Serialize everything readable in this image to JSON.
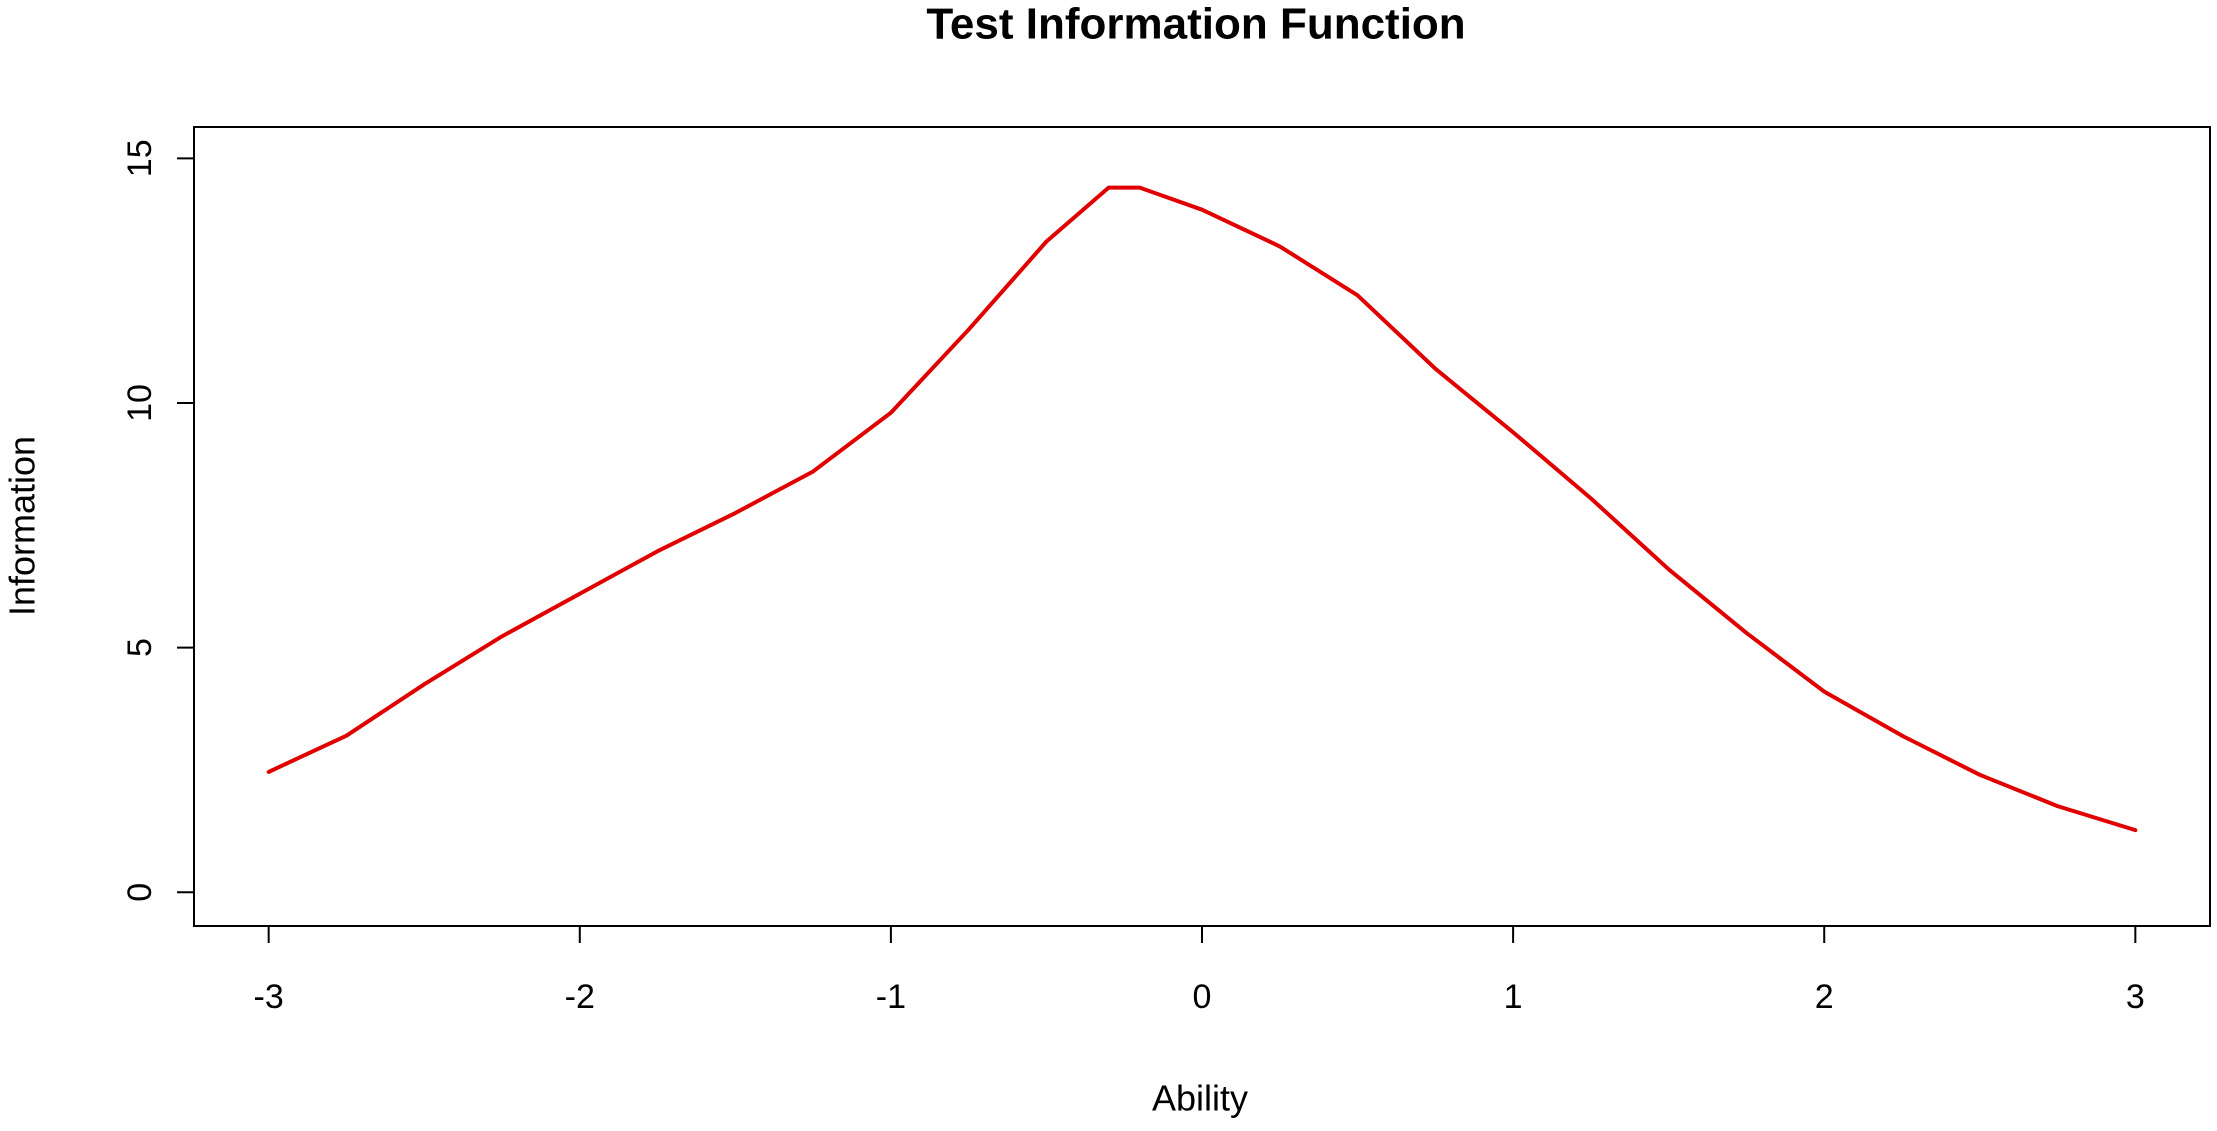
{
  "chart_data": {
    "type": "line",
    "title": "Test Information Function",
    "x_label": "Ability",
    "y_label": "Information",
    "x": [
      -3,
      -2.75,
      -2.5,
      -2.25,
      -2,
      -1.75,
      -1.5,
      -1.25,
      -1,
      -0.75,
      -0.5,
      -0.3,
      -0.2,
      0,
      0.25,
      0.5,
      0.75,
      1,
      1.25,
      1.5,
      1.75,
      2,
      2.25,
      2.5,
      2.75,
      3
    ],
    "series": [
      {
        "name": "Information",
        "color": "#e00000",
        "values": [
          2.46,
          3.2,
          4.25,
          5.23,
          6.1,
          6.97,
          7.75,
          8.6,
          9.8,
          11.5,
          13.3,
          14.4,
          14.4,
          13.95,
          13.2,
          12.2,
          10.7,
          9.4,
          8.05,
          6.6,
          5.3,
          4.1,
          3.2,
          2.4,
          1.76,
          1.27
        ]
      }
    ],
    "xlim": [
      -3.24,
      3.24
    ],
    "ylim": [
      -0.69,
      15.64
    ],
    "xticks": [
      -3,
      -2,
      -1,
      0,
      1,
      2,
      3
    ],
    "yticks": [
      0,
      5,
      10,
      15
    ],
    "grid": false
  }
}
